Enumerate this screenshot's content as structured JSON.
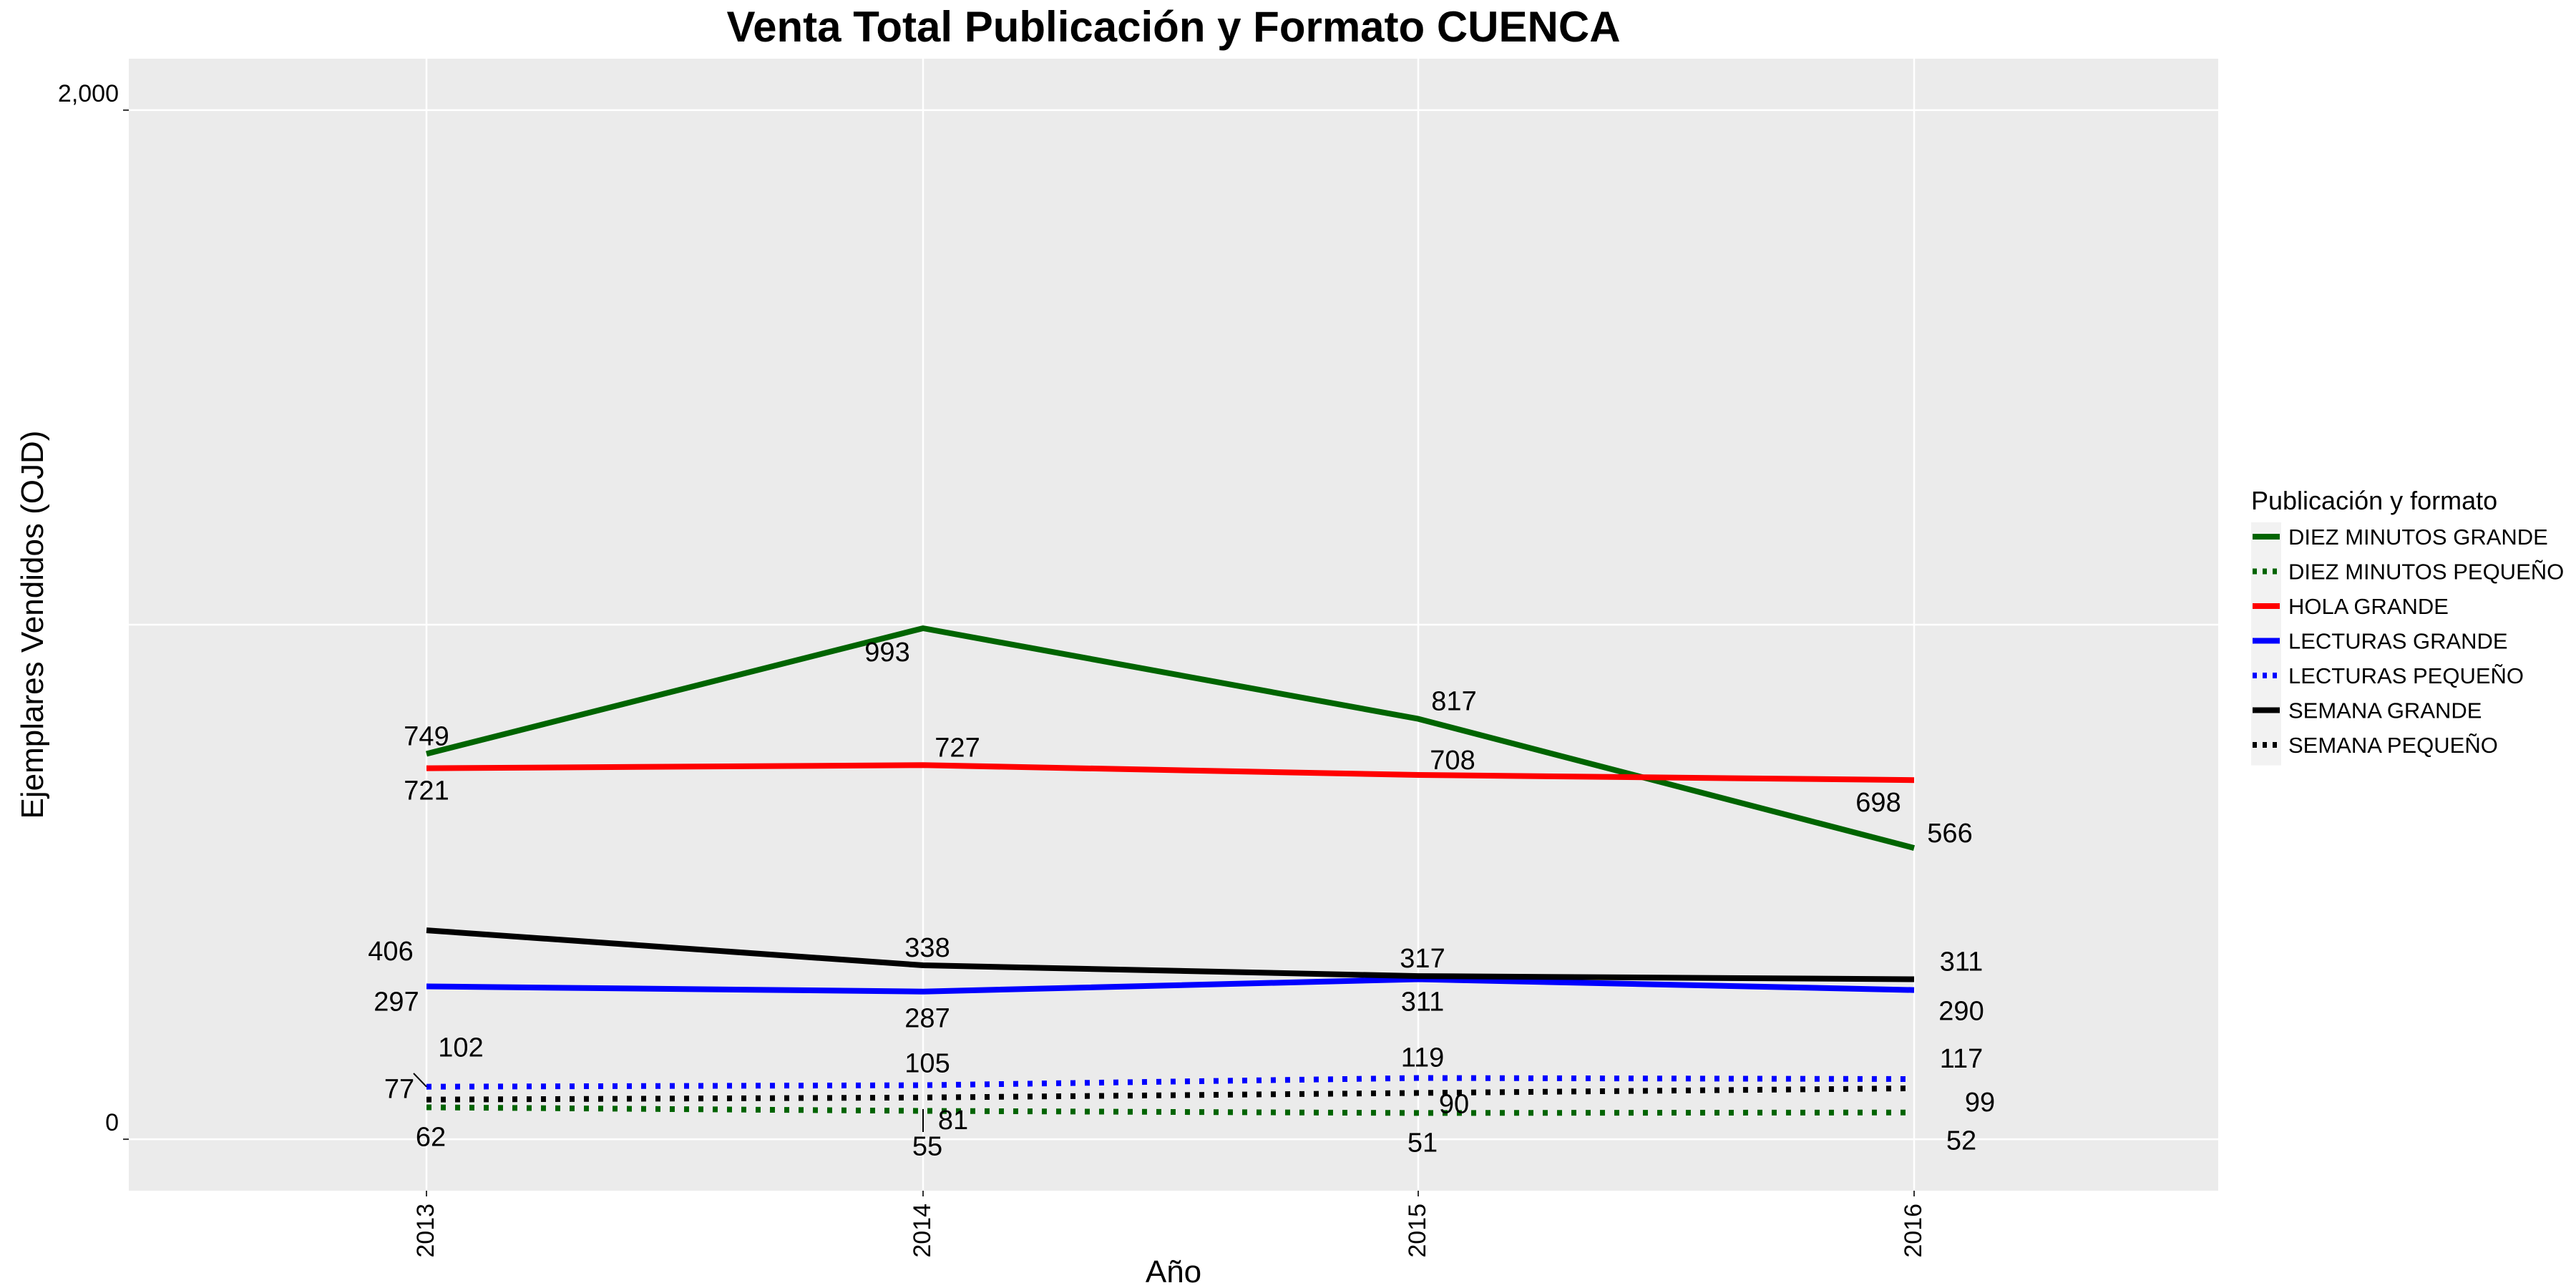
{
  "chart_data": {
    "type": "line",
    "title": "Venta Total Publicación y Formato  CUENCA",
    "xlabel": "Año",
    "ylabel": "Ejemplares Vendidos (OJD)",
    "x": [
      "2013",
      "2014",
      "2015",
      "2016"
    ],
    "ylim": [
      -100,
      2100
    ],
    "y_ticks": [
      0,
      2000
    ],
    "y_tick_labels": [
      "0",
      "2,000"
    ],
    "grid": true,
    "legend": {
      "title": "Publicación y formato",
      "position": "right"
    },
    "series": [
      {
        "name": "DIEZ MINUTOS GRANDE",
        "values": [
          749,
          993,
          817,
          566
        ],
        "color": "#006400",
        "dash": "solid"
      },
      {
        "name": "DIEZ MINUTOS PEQUEÑO",
        "values": [
          62,
          55,
          51,
          52
        ],
        "color": "#006400",
        "dash": "dotted"
      },
      {
        "name": "HOLA GRANDE",
        "values": [
          721,
          727,
          708,
          698
        ],
        "color": "#ff0000",
        "dash": "solid"
      },
      {
        "name": "LECTURAS GRANDE",
        "values": [
          297,
          287,
          311,
          290
        ],
        "color": "#0000ff",
        "dash": "solid"
      },
      {
        "name": "LECTURAS PEQUEÑO",
        "values": [
          102,
          105,
          119,
          117
        ],
        "color": "#0000ff",
        "dash": "dotted"
      },
      {
        "name": "SEMANA GRANDE",
        "values": [
          406,
          338,
          317,
          311
        ],
        "color": "#000000",
        "dash": "solid"
      },
      {
        "name": "SEMANA PEQUEÑO",
        "values": [
          77,
          81,
          90,
          99
        ],
        "color": "#000000",
        "dash": "dotted"
      }
    ]
  }
}
